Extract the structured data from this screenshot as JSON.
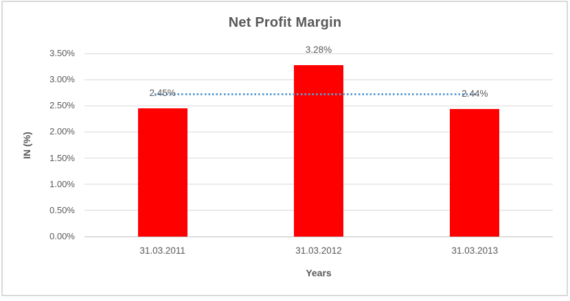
{
  "chart_data": {
    "type": "bar",
    "title": "Net Profit Margin",
    "xlabel": "Years",
    "ylabel": "IN (%)",
    "categories": [
      "31.03.2011",
      "31.03.2012",
      "31.03.2013"
    ],
    "values": [
      2.45,
      3.28,
      2.44
    ],
    "data_labels": [
      "2.45%",
      "3.28%",
      "2.44%"
    ],
    "ylim": [
      0,
      3.5
    ],
    "ytick_step": 0.5,
    "yticks": [
      {
        "value": 0.0,
        "label": "0.00%"
      },
      {
        "value": 0.5,
        "label": "0.50%"
      },
      {
        "value": 1.0,
        "label": "1.00%"
      },
      {
        "value": 1.5,
        "label": "1.50%"
      },
      {
        "value": 2.0,
        "label": "2.00%"
      },
      {
        "value": 2.5,
        "label": "2.50%"
      },
      {
        "value": 3.0,
        "label": "3.00%"
      },
      {
        "value": 3.5,
        "label": "3.50%"
      }
    ],
    "grid": true,
    "legend": "none",
    "trendline": {
      "style": "dotted",
      "value": 2.72
    },
    "colors": {
      "bar": "#FF0000",
      "trendline": "#5B9BD5",
      "text": "#595959",
      "gridline": "#D9D9D9",
      "axis_line": "#BFBFBF",
      "border": "#D9D9D9",
      "background": "#FFFFFF"
    }
  }
}
